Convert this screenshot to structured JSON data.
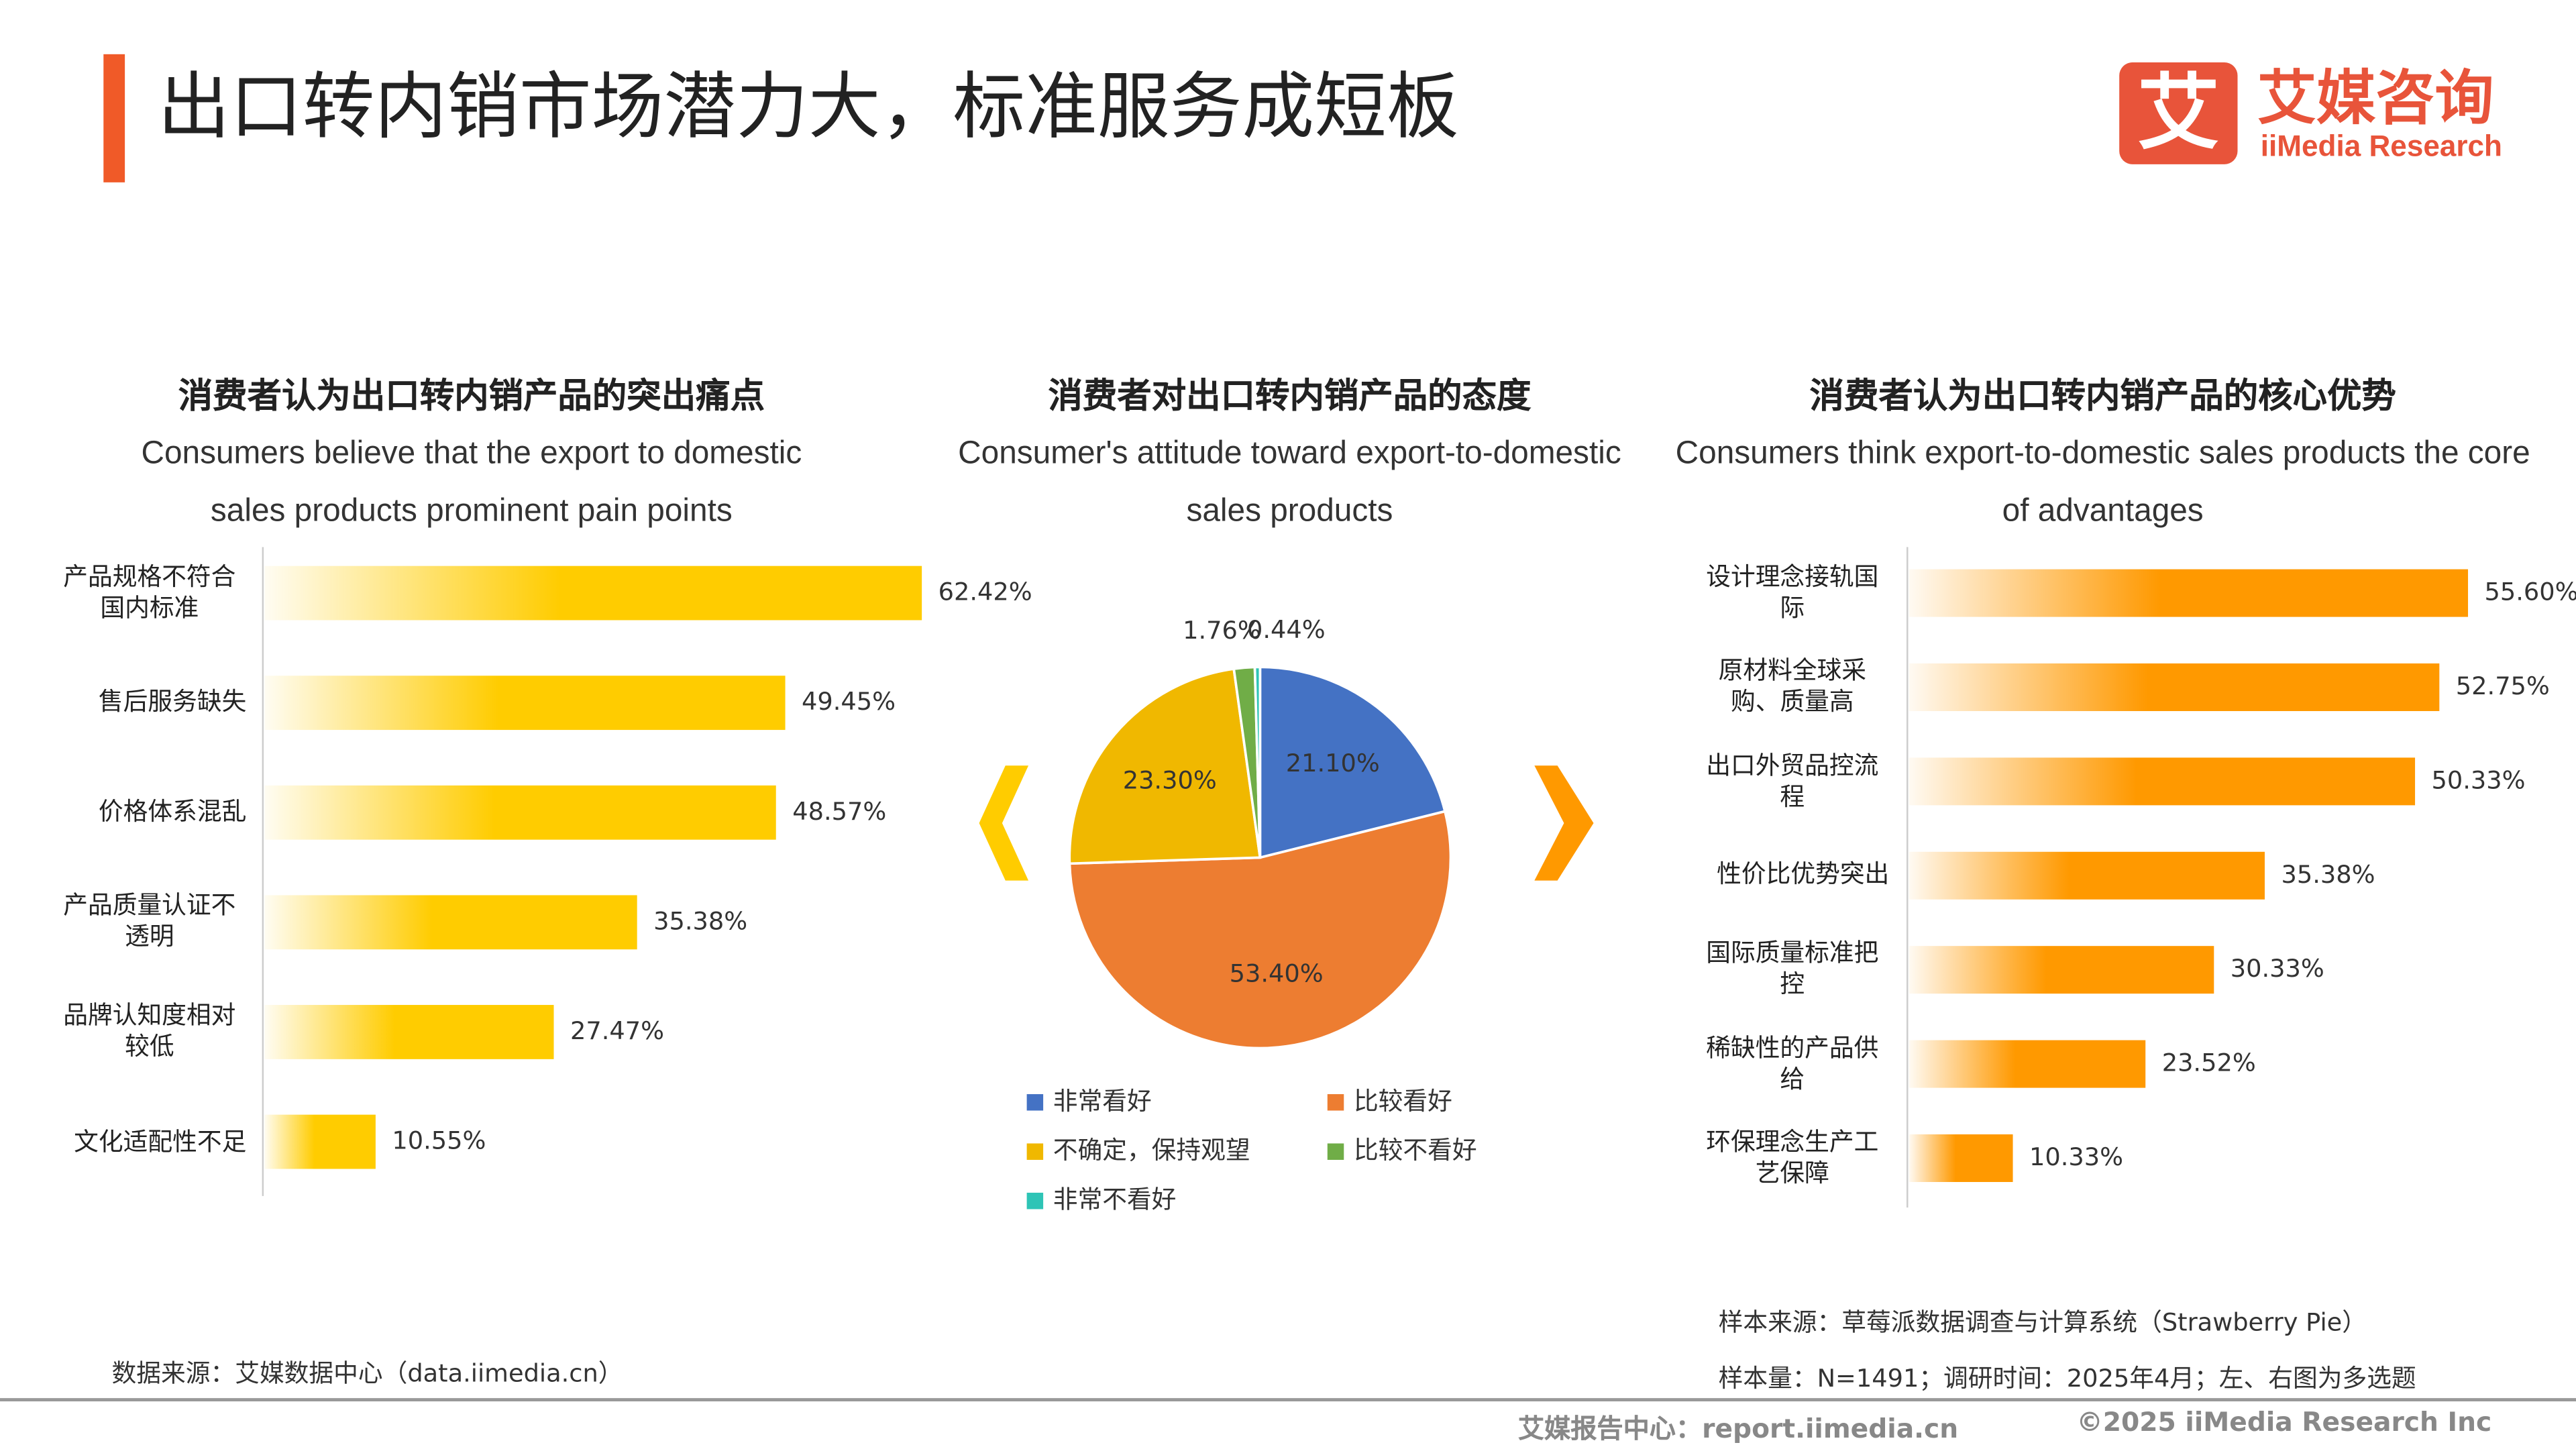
{
  "header": {
    "title": "出口转内销市场潜力大，标准服务成短板",
    "logo_mark": "艾",
    "logo_name": "艾媒咨询",
    "logo_subtitle": "iiMedia Research"
  },
  "chart_data": [
    {
      "type": "bar",
      "orientation": "horizontal",
      "title": "消费者认为出口转内销产品的突出痛点",
      "subtitle": "Consumers believe that the export to domestic sales products prominent pain points",
      "categories": [
        "产品规格不符合国内标准",
        "售后服务缺失",
        "价格体系混乱",
        "产品质量认证不透明",
        "品牌认知度相对较低",
        "文化适配性不足"
      ],
      "values": [
        62.42,
        49.45,
        48.57,
        35.38,
        27.47,
        10.55
      ],
      "value_labels": [
        "62.42%",
        "49.45%",
        "48.57%",
        "35.38%",
        "27.47%",
        "10.55%"
      ],
      "color": "#ffcc00"
    },
    {
      "type": "pie",
      "title": "消费者对出口转内销产品的态度",
      "subtitle": "Consumer's attitude toward export-to-domestic sales products",
      "categories": [
        "非常看好",
        "比较看好",
        "不确定，保持观望",
        "比较不看好",
        "非常不看好"
      ],
      "values": [
        21.1,
        53.4,
        23.3,
        1.76,
        0.44
      ],
      "value_labels": [
        "21.10%",
        "53.40%",
        "23.30%",
        "1.76%",
        "0.44%"
      ],
      "colors": [
        "#4472c4",
        "#ed7d31",
        "#f0b800",
        "#70ad47",
        "#2ec4b6"
      ]
    },
    {
      "type": "bar",
      "orientation": "horizontal",
      "title": "消费者认为出口转内销产品的核心优势",
      "subtitle": "Consumers think export-to-domestic sales products the core of  advantages",
      "categories": [
        "设计理念接轨国际",
        "原材料全球采购、质量高",
        "出口外贸品控流程",
        "性价比优势突出",
        "国际质量标准把控",
        "稀缺性的产品供给",
        "环保理念生产工艺保障"
      ],
      "values": [
        55.6,
        52.75,
        50.33,
        35.38,
        30.33,
        23.52,
        10.33
      ],
      "value_labels": [
        "55.60%",
        "52.75%",
        "50.33%",
        "35.38%",
        "30.33%",
        "23.52%",
        "10.33%"
      ],
      "color": "#ff9900"
    }
  ],
  "footer": {
    "data_source": "数据来源：艾媒数据中心（data.iimedia.cn）",
    "sample_source": "样本来源：草莓派数据调查与计算系统（Strawberry Pie）",
    "sample_size": "样本量：N=1491；调研时间：2025年4月；左、右图为多选题",
    "report_center": "艾媒报告中心：report.iimedia.cn",
    "copyright": "©2025  iiMedia Research  Inc"
  }
}
